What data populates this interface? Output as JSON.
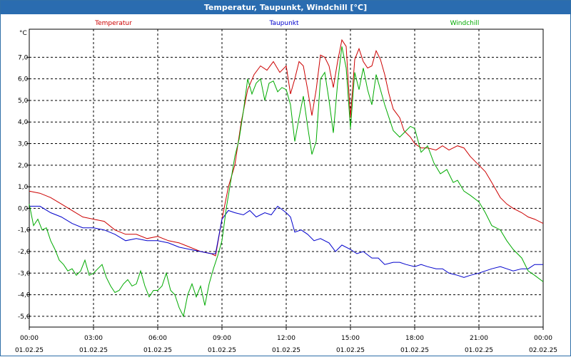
{
  "window": {
    "title": "Temperatur, Taupunkt, Windchill [°C]"
  },
  "chart_data": {
    "type": "line",
    "unit_label": "°C",
    "ylim": [
      -5.5,
      8.3
    ],
    "y_ticks": [
      "7,0",
      "6,0",
      "5,0",
      "4,0",
      "3,0",
      "2,0",
      "1,0",
      "0,0",
      "-1,0",
      "-2,0",
      "-3,0",
      "-4,0",
      "-5,0"
    ],
    "y_tick_values": [
      7,
      6,
      5,
      4,
      3,
      2,
      1,
      0,
      -1,
      -2,
      -3,
      -4,
      -5
    ],
    "x_range_hours": [
      0,
      24
    ],
    "x_ticks": [
      {
        "time": "00:00",
        "date": "01.02.25"
      },
      {
        "time": "03:00",
        "date": "01.02.25"
      },
      {
        "time": "06:00",
        "date": "01.02.25"
      },
      {
        "time": "09:00",
        "date": "01.02.25"
      },
      {
        "time": "12:00",
        "date": "01.02.25"
      },
      {
        "time": "15:00",
        "date": "01.02.25"
      },
      {
        "time": "18:00",
        "date": "01.02.25"
      },
      {
        "time": "21:00",
        "date": "01.02.25"
      },
      {
        "time": "00:00",
        "date": "02.02.25"
      }
    ],
    "grid": true,
    "legend_position": "top",
    "series": [
      {
        "name": "Temperatur",
        "color": "#cc0000",
        "points": [
          [
            0,
            0.8
          ],
          [
            0.5,
            0.7
          ],
          [
            1,
            0.5
          ],
          [
            1.5,
            0.2
          ],
          [
            2,
            -0.1
          ],
          [
            2.5,
            -0.4
          ],
          [
            3,
            -0.5
          ],
          [
            3.5,
            -0.6
          ],
          [
            4,
            -1.0
          ],
          [
            4.5,
            -1.2
          ],
          [
            5,
            -1.2
          ],
          [
            5.5,
            -1.4
          ],
          [
            6,
            -1.3
          ],
          [
            6.5,
            -1.5
          ],
          [
            7,
            -1.6
          ],
          [
            7.5,
            -1.8
          ],
          [
            8,
            -2.0
          ],
          [
            8.5,
            -2.1
          ],
          [
            8.7,
            -2.2
          ],
          [
            9,
            -0.5
          ],
          [
            9.3,
            1.0
          ],
          [
            9.6,
            2.0
          ],
          [
            9.9,
            4.0
          ],
          [
            10.2,
            5.5
          ],
          [
            10.5,
            6.2
          ],
          [
            10.8,
            6.6
          ],
          [
            11.1,
            6.4
          ],
          [
            11.4,
            6.8
          ],
          [
            11.7,
            6.3
          ],
          [
            12,
            6.6
          ],
          [
            12.2,
            5.3
          ],
          [
            12.4,
            6.0
          ],
          [
            12.6,
            6.8
          ],
          [
            12.8,
            6.6
          ],
          [
            13,
            5.5
          ],
          [
            13.2,
            4.3
          ],
          [
            13.4,
            5.5
          ],
          [
            13.6,
            7.1
          ],
          [
            13.8,
            7.0
          ],
          [
            14,
            6.6
          ],
          [
            14.2,
            5.6
          ],
          [
            14.4,
            6.8
          ],
          [
            14.6,
            7.8
          ],
          [
            14.8,
            7.5
          ],
          [
            15,
            4.2
          ],
          [
            15.2,
            6.9
          ],
          [
            15.4,
            7.4
          ],
          [
            15.6,
            6.8
          ],
          [
            15.8,
            6.5
          ],
          [
            16,
            6.6
          ],
          [
            16.2,
            7.3
          ],
          [
            16.4,
            6.9
          ],
          [
            16.6,
            6.2
          ],
          [
            16.8,
            5.3
          ],
          [
            17,
            4.6
          ],
          [
            17.3,
            4.2
          ],
          [
            17.5,
            3.6
          ],
          [
            17.8,
            3.3
          ],
          [
            18,
            3.0
          ],
          [
            18.3,
            2.8
          ],
          [
            18.6,
            2.8
          ],
          [
            19,
            2.7
          ],
          [
            19.3,
            2.9
          ],
          [
            19.6,
            2.7
          ],
          [
            20,
            2.9
          ],
          [
            20.3,
            2.8
          ],
          [
            20.6,
            2.4
          ],
          [
            21,
            2.0
          ],
          [
            21.3,
            1.7
          ],
          [
            21.6,
            1.2
          ],
          [
            22,
            0.5
          ],
          [
            22.3,
            0.2
          ],
          [
            22.6,
            0.0
          ],
          [
            23,
            -0.2
          ],
          [
            23.3,
            -0.4
          ],
          [
            23.6,
            -0.5
          ],
          [
            24,
            -0.7
          ]
        ]
      },
      {
        "name": "Taupunkt",
        "color": "#0000cc",
        "points": [
          [
            0,
            0.1
          ],
          [
            0.5,
            0.1
          ],
          [
            1,
            -0.2
          ],
          [
            1.5,
            -0.4
          ],
          [
            2,
            -0.7
          ],
          [
            2.5,
            -0.9
          ],
          [
            3,
            -0.9
          ],
          [
            3.5,
            -1.0
          ],
          [
            4,
            -1.2
          ],
          [
            4.5,
            -1.5
          ],
          [
            5,
            -1.4
          ],
          [
            5.5,
            -1.5
          ],
          [
            6,
            -1.5
          ],
          [
            6.5,
            -1.6
          ],
          [
            7,
            -1.8
          ],
          [
            7.5,
            -1.9
          ],
          [
            8,
            -2.0
          ],
          [
            8.5,
            -2.1
          ],
          [
            8.7,
            -2.1
          ],
          [
            9,
            -0.5
          ],
          [
            9.3,
            -0.1
          ],
          [
            9.6,
            -0.2
          ],
          [
            10,
            -0.3
          ],
          [
            10.3,
            -0.1
          ],
          [
            10.6,
            -0.4
          ],
          [
            11,
            -0.2
          ],
          [
            11.3,
            -0.3
          ],
          [
            11.6,
            0.1
          ],
          [
            12,
            -0.2
          ],
          [
            12.2,
            -0.4
          ],
          [
            12.4,
            -1.1
          ],
          [
            12.7,
            -1.0
          ],
          [
            13,
            -1.2
          ],
          [
            13.3,
            -1.5
          ],
          [
            13.6,
            -1.4
          ],
          [
            14,
            -1.6
          ],
          [
            14.3,
            -2.0
          ],
          [
            14.6,
            -1.7
          ],
          [
            15,
            -1.9
          ],
          [
            15.3,
            -2.1
          ],
          [
            15.6,
            -2.0
          ],
          [
            16,
            -2.3
          ],
          [
            16.3,
            -2.3
          ],
          [
            16.6,
            -2.6
          ],
          [
            17,
            -2.5
          ],
          [
            17.3,
            -2.5
          ],
          [
            17.6,
            -2.6
          ],
          [
            18,
            -2.7
          ],
          [
            18.3,
            -2.6
          ],
          [
            18.6,
            -2.7
          ],
          [
            19,
            -2.8
          ],
          [
            19.3,
            -2.8
          ],
          [
            19.6,
            -3.0
          ],
          [
            20,
            -3.1
          ],
          [
            20.3,
            -3.2
          ],
          [
            20.6,
            -3.1
          ],
          [
            21,
            -3.0
          ],
          [
            21.3,
            -2.9
          ],
          [
            21.6,
            -2.8
          ],
          [
            22,
            -2.7
          ],
          [
            22.3,
            -2.8
          ],
          [
            22.6,
            -2.9
          ],
          [
            23,
            -2.8
          ],
          [
            23.3,
            -2.8
          ],
          [
            23.6,
            -2.6
          ],
          [
            24,
            -2.6
          ]
        ]
      },
      {
        "name": "Windchill",
        "color": "#00aa00",
        "points": [
          [
            0,
            0.2
          ],
          [
            0.2,
            -0.8
          ],
          [
            0.4,
            -0.5
          ],
          [
            0.6,
            -1.0
          ],
          [
            0.8,
            -0.9
          ],
          [
            1,
            -1.5
          ],
          [
            1.2,
            -1.9
          ],
          [
            1.4,
            -2.4
          ],
          [
            1.6,
            -2.6
          ],
          [
            1.8,
            -2.9
          ],
          [
            2,
            -2.8
          ],
          [
            2.2,
            -3.1
          ],
          [
            2.4,
            -2.9
          ],
          [
            2.6,
            -2.4
          ],
          [
            2.8,
            -3.1
          ],
          [
            3,
            -3.0
          ],
          [
            3.2,
            -2.8
          ],
          [
            3.4,
            -2.6
          ],
          [
            3.6,
            -3.2
          ],
          [
            3.8,
            -3.6
          ],
          [
            4,
            -3.9
          ],
          [
            4.2,
            -3.8
          ],
          [
            4.4,
            -3.5
          ],
          [
            4.6,
            -3.3
          ],
          [
            4.8,
            -3.6
          ],
          [
            5,
            -3.5
          ],
          [
            5.2,
            -2.9
          ],
          [
            5.4,
            -3.6
          ],
          [
            5.6,
            -4.1
          ],
          [
            5.8,
            -3.8
          ],
          [
            6,
            -3.8
          ],
          [
            6.2,
            -3.6
          ],
          [
            6.4,
            -3.0
          ],
          [
            6.6,
            -3.8
          ],
          [
            6.8,
            -4.0
          ],
          [
            7,
            -4.6
          ],
          [
            7.2,
            -5.0
          ],
          [
            7.4,
            -4.0
          ],
          [
            7.6,
            -3.5
          ],
          [
            7.8,
            -4.1
          ],
          [
            8,
            -3.6
          ],
          [
            8.2,
            -4.5
          ],
          [
            8.4,
            -3.5
          ],
          [
            8.6,
            -2.8
          ],
          [
            8.8,
            -2.2
          ],
          [
            9,
            -1.5
          ],
          [
            9.2,
            0.0
          ],
          [
            9.4,
            1.2
          ],
          [
            9.6,
            2.4
          ],
          [
            9.8,
            3.2
          ],
          [
            10,
            4.5
          ],
          [
            10.2,
            6.0
          ],
          [
            10.4,
            5.3
          ],
          [
            10.6,
            5.8
          ],
          [
            10.8,
            6.0
          ],
          [
            11,
            5.0
          ],
          [
            11.2,
            5.8
          ],
          [
            11.4,
            5.9
          ],
          [
            11.6,
            5.4
          ],
          [
            11.8,
            5.6
          ],
          [
            12,
            5.5
          ],
          [
            12.2,
            4.8
          ],
          [
            12.4,
            3.1
          ],
          [
            12.6,
            4.2
          ],
          [
            12.8,
            5.2
          ],
          [
            13,
            3.8
          ],
          [
            13.2,
            2.5
          ],
          [
            13.4,
            3.1
          ],
          [
            13.6,
            6.0
          ],
          [
            13.8,
            6.3
          ],
          [
            14,
            5.0
          ],
          [
            14.2,
            3.5
          ],
          [
            14.4,
            5.8
          ],
          [
            14.6,
            7.5
          ],
          [
            14.8,
            6.5
          ],
          [
            15,
            3.7
          ],
          [
            15.2,
            6.3
          ],
          [
            15.4,
            5.5
          ],
          [
            15.6,
            6.5
          ],
          [
            15.8,
            5.5
          ],
          [
            16,
            4.8
          ],
          [
            16.2,
            6.2
          ],
          [
            16.4,
            5.5
          ],
          [
            16.6,
            4.8
          ],
          [
            16.8,
            4.2
          ],
          [
            17,
            3.6
          ],
          [
            17.3,
            3.3
          ],
          [
            17.5,
            3.5
          ],
          [
            17.8,
            3.8
          ],
          [
            18,
            3.7
          ],
          [
            18.3,
            2.6
          ],
          [
            18.6,
            2.9
          ],
          [
            18.9,
            2.1
          ],
          [
            19.2,
            1.6
          ],
          [
            19.5,
            1.8
          ],
          [
            19.8,
            1.2
          ],
          [
            20,
            1.3
          ],
          [
            20.3,
            0.8
          ],
          [
            20.6,
            0.6
          ],
          [
            21,
            0.3
          ],
          [
            21.3,
            -0.2
          ],
          [
            21.6,
            -0.8
          ],
          [
            22,
            -1.0
          ],
          [
            22.3,
            -1.5
          ],
          [
            22.6,
            -1.9
          ],
          [
            23,
            -2.3
          ],
          [
            23.3,
            -2.9
          ],
          [
            23.6,
            -3.1
          ],
          [
            24,
            -3.4
          ]
        ]
      }
    ]
  }
}
